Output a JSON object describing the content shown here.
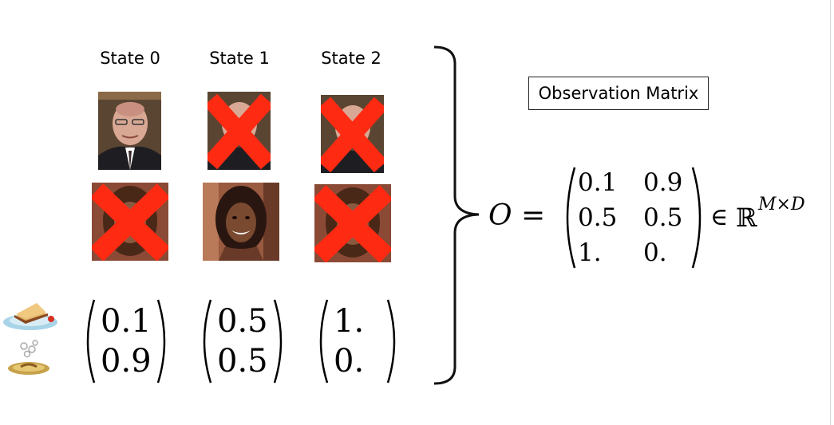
{
  "states": [
    {
      "label": "State 0",
      "vector": [
        "0.1",
        "0.9"
      ]
    },
    {
      "label": "State 1",
      "vector": [
        "0.5",
        "0.5"
      ]
    },
    {
      "label": "State 2",
      "vector": [
        "1.",
        "0."
      ]
    }
  ],
  "observation_box_label": "Observation Matrix",
  "equation": {
    "lhs": "O =",
    "rows": [
      [
        "0.1",
        "0.9"
      ],
      [
        "0.5",
        "0.5"
      ],
      [
        "1.",
        "0."
      ]
    ],
    "in_symbol": "∈",
    "set": "ℝ",
    "superscript": "M×D"
  },
  "colors": {
    "cross": "#ff2a12",
    "brace": "#111111"
  },
  "icons": {
    "top": "sandwich-plate-icon",
    "bottom": "cooked-food-plate-icon"
  }
}
